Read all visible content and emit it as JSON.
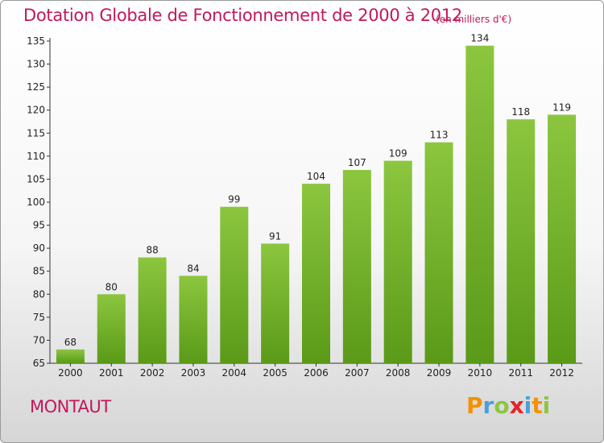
{
  "header": {
    "title": "Dotation Globale de Fonctionnement de 2000 à 2012",
    "subtitle": "(en milliers d'€)"
  },
  "footer": {
    "commune": "MONTAUT",
    "logo": {
      "letters": [
        "P",
        "r",
        "o",
        "x",
        "i",
        "t",
        "i"
      ],
      "colors": [
        "#f39200",
        "#4a9fd8",
        "#8cc63f",
        "#e5232a",
        "#4a9fd8",
        "#f39200",
        "#8cc63f"
      ]
    }
  },
  "chart_data": {
    "type": "bar",
    "title": "Dotation Globale de Fonctionnement de 2000 à 2012",
    "subtitle": "(en milliers d'€)",
    "categories": [
      "2000",
      "2001",
      "2002",
      "2003",
      "2004",
      "2005",
      "2006",
      "2007",
      "2008",
      "2009",
      "2010",
      "2011",
      "2012"
    ],
    "values": [
      68,
      80,
      88,
      84,
      99,
      91,
      104,
      107,
      109,
      113,
      134,
      118,
      119
    ],
    "value_labels": [
      "68",
      "80",
      "88",
      "84",
      "99",
      "91",
      "104",
      "107",
      "109",
      "113",
      "134",
      "118",
      "119"
    ],
    "ylim": [
      65,
      135
    ],
    "yticks": [
      "65",
      "70",
      "75",
      "80",
      "85",
      "90",
      "95",
      "100",
      "105",
      "110",
      "115",
      "120",
      "125",
      "130",
      "135"
    ],
    "bar_color": "#8cc63f",
    "bar_color_dark": "#5a9a18",
    "grid": false,
    "legend": "none"
  }
}
